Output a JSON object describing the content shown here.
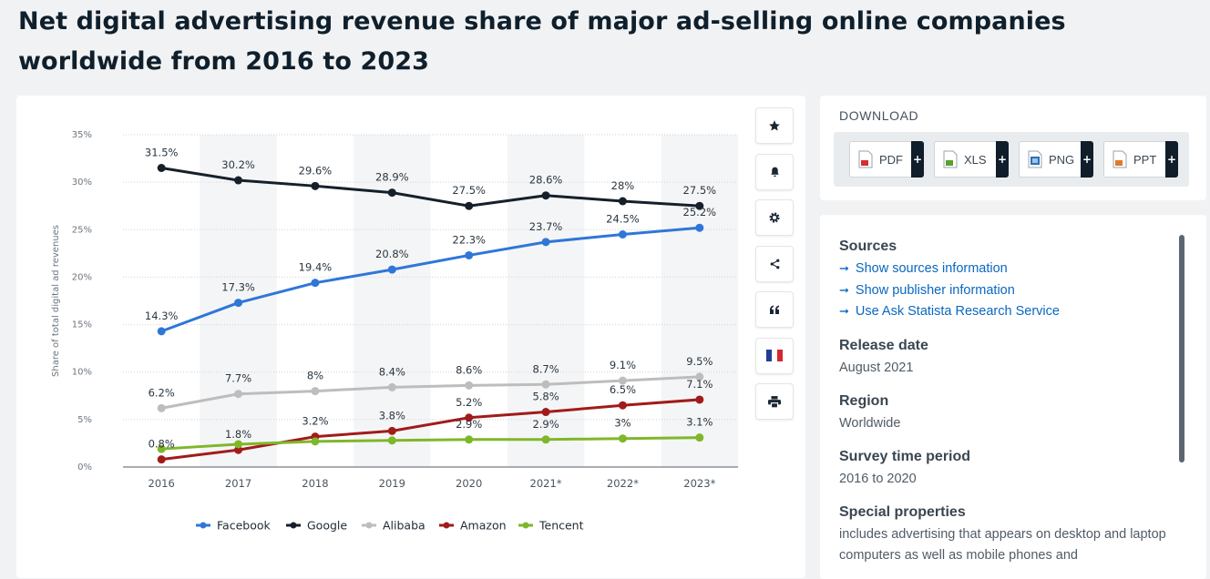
{
  "title": "Net digital advertising revenue share of major ad-selling online companies worldwide from 2016 to 2023",
  "chart_data": {
    "type": "line",
    "ylabel": "Share of total digital ad revenues",
    "xlabel": "",
    "categories": [
      "2016",
      "2017",
      "2018",
      "2019",
      "2020",
      "2021*",
      "2022*",
      "2023*"
    ],
    "y_ticks": [
      "0%",
      "5%",
      "10%",
      "15%",
      "20%",
      "25%",
      "30%",
      "35%"
    ],
    "ylim": [
      0,
      35
    ],
    "grid": true,
    "legend_position": "bottom",
    "series": [
      {
        "name": "Facebook",
        "color": "#2f76d8",
        "values": [
          14.3,
          17.3,
          19.4,
          20.8,
          22.3,
          23.7,
          24.5,
          25.2
        ],
        "labels": [
          "14.3%",
          "17.3%",
          "19.4%",
          "20.8%",
          "22.3%",
          "23.7%",
          "24.5%",
          "25.2%"
        ]
      },
      {
        "name": "Google",
        "color": "#15202b",
        "values": [
          31.5,
          30.2,
          29.6,
          28.9,
          27.5,
          28.6,
          28,
          27.5
        ],
        "labels": [
          "31.5%",
          "30.2%",
          "29.6%",
          "28.9%",
          "27.5%",
          "28.6%",
          "28%",
          "27.5%"
        ]
      },
      {
        "name": "Alibaba",
        "color": "#bdbdbd",
        "values": [
          6.2,
          7.7,
          8,
          8.4,
          8.6,
          8.7,
          9.1,
          9.5
        ],
        "labels": [
          "6.2%",
          "7.7%",
          "8%",
          "8.4%",
          "8.6%",
          "8.7%",
          "9.1%",
          "9.5%"
        ]
      },
      {
        "name": "Amazon",
        "color": "#a11b1b",
        "values": [
          0.8,
          1.8,
          3.2,
          3.8,
          5.2,
          5.8,
          6.5,
          7.1
        ],
        "labels": [
          "0.8%",
          "1.8%",
          "3.2%",
          "3.8%",
          "5.2%",
          "5.8%",
          "6.5%",
          "7.1%"
        ]
      },
      {
        "name": "Tencent",
        "color": "#7fb72a",
        "values": [
          1.9,
          2.4,
          2.7,
          2.8,
          2.9,
          2.9,
          3,
          3.1
        ],
        "labels": [
          "",
          "",
          "",
          "",
          "2.9%",
          "2.9%",
          "3%",
          "3.1%"
        ]
      }
    ]
  },
  "toolbar": {
    "icons": [
      "star-icon",
      "bell-icon",
      "gear-icon",
      "share-icon",
      "quote-icon",
      "french-flag-icon",
      "print-icon"
    ]
  },
  "download": {
    "title": "DOWNLOAD",
    "buttons": [
      {
        "label": "PDF",
        "plus": "+",
        "icon": "pdf-file-icon",
        "color": "#d32f2f"
      },
      {
        "label": "XLS",
        "plus": "+",
        "icon": "xls-file-icon",
        "color": "#5aa02c"
      },
      {
        "label": "PNG",
        "plus": "+",
        "icon": "png-file-icon",
        "color": "#2f6db5"
      },
      {
        "label": "PPT",
        "plus": "+",
        "icon": "ppt-file-icon",
        "color": "#e07b28"
      }
    ]
  },
  "info": {
    "sources_heading": "Sources",
    "links": [
      "Show sources information",
      "Show publisher information",
      "Use Ask Statista Research Service"
    ],
    "release_heading": "Release date",
    "release_value": "August 2021",
    "region_heading": "Region",
    "region_value": "Worldwide",
    "survey_heading": "Survey time period",
    "survey_value": "2016 to 2020",
    "special_heading": "Special properties",
    "special_value": "includes advertising that appears on desktop and laptop computers as well as mobile phones and"
  }
}
